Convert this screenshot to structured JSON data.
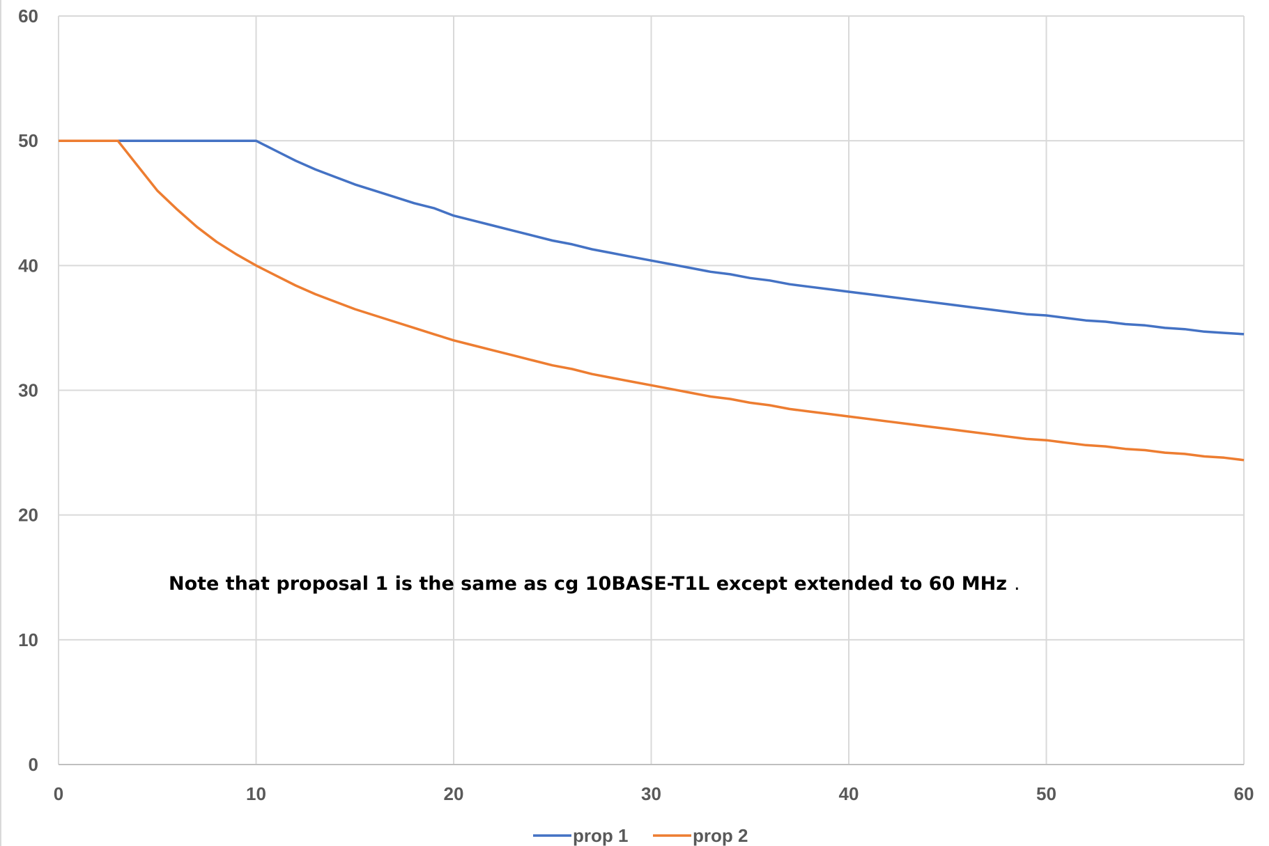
{
  "chart_data": {
    "type": "line",
    "title": "",
    "xlabel": "",
    "ylabel": "",
    "xlim": [
      0,
      60
    ],
    "ylim": [
      0,
      60
    ],
    "x_ticks": [
      0,
      10,
      20,
      30,
      40,
      50,
      60
    ],
    "y_ticks": [
      0,
      10,
      20,
      30,
      40,
      50,
      60
    ],
    "grid": true,
    "legend_position": "bottom",
    "annotation": "Note that proposal 1 is the same as cg 10BASE-T1L except extended to 60 MHz",
    "series": [
      {
        "name": "prop 1",
        "color": "#4472C4",
        "x": [
          0,
          1,
          2,
          3,
          4,
          5,
          6,
          7,
          8,
          9,
          10,
          11,
          12,
          13,
          14,
          15,
          16,
          17,
          18,
          19,
          20,
          21,
          22,
          23,
          24,
          25,
          26,
          27,
          28,
          29,
          30,
          31,
          32,
          33,
          34,
          35,
          36,
          37,
          38,
          39,
          40,
          41,
          42,
          43,
          44,
          45,
          46,
          47,
          48,
          49,
          50,
          51,
          52,
          53,
          54,
          55,
          56,
          57,
          58,
          59,
          60
        ],
        "y": [
          50,
          50,
          50,
          50,
          50,
          50,
          50,
          50,
          50,
          50,
          50,
          49.2,
          48.4,
          47.7,
          47.1,
          46.5,
          46.0,
          45.5,
          45.0,
          44.6,
          44.0,
          43.6,
          43.2,
          42.8,
          42.4,
          42.0,
          41.7,
          41.3,
          41.0,
          40.7,
          40.4,
          40.1,
          39.8,
          39.5,
          39.3,
          39.0,
          38.8,
          38.5,
          38.3,
          38.1,
          37.9,
          37.7,
          37.5,
          37.3,
          37.1,
          36.9,
          36.7,
          36.5,
          36.3,
          36.1,
          36.0,
          35.8,
          35.6,
          35.5,
          35.3,
          35.2,
          35.0,
          34.9,
          34.7,
          34.6,
          34.5
        ]
      },
      {
        "name": "prop 2",
        "color": "#ED7D31",
        "x": [
          0,
          1,
          2,
          3,
          4,
          5,
          6,
          7,
          8,
          9,
          10,
          11,
          12,
          13,
          14,
          15,
          16,
          17,
          18,
          19,
          20,
          21,
          22,
          23,
          24,
          25,
          26,
          27,
          28,
          29,
          30,
          31,
          32,
          33,
          34,
          35,
          36,
          37,
          38,
          39,
          40,
          41,
          42,
          43,
          44,
          45,
          46,
          47,
          48,
          49,
          50,
          51,
          52,
          53,
          54,
          55,
          56,
          57,
          58,
          59,
          60
        ],
        "y": [
          50,
          50,
          50,
          50,
          48.0,
          46.0,
          44.5,
          43.1,
          41.9,
          40.9,
          40.0,
          39.2,
          38.4,
          37.7,
          37.1,
          36.5,
          36.0,
          35.5,
          35.0,
          34.5,
          34.0,
          33.6,
          33.2,
          32.8,
          32.4,
          32.0,
          31.7,
          31.3,
          31.0,
          30.7,
          30.4,
          30.1,
          29.8,
          29.5,
          29.3,
          29.0,
          28.8,
          28.5,
          28.3,
          28.1,
          27.9,
          27.7,
          27.5,
          27.3,
          27.1,
          26.9,
          26.7,
          26.5,
          26.3,
          26.1,
          26.0,
          25.8,
          25.6,
          25.5,
          25.3,
          25.2,
          25.0,
          24.9,
          24.7,
          24.6,
          24.4
        ]
      }
    ]
  }
}
